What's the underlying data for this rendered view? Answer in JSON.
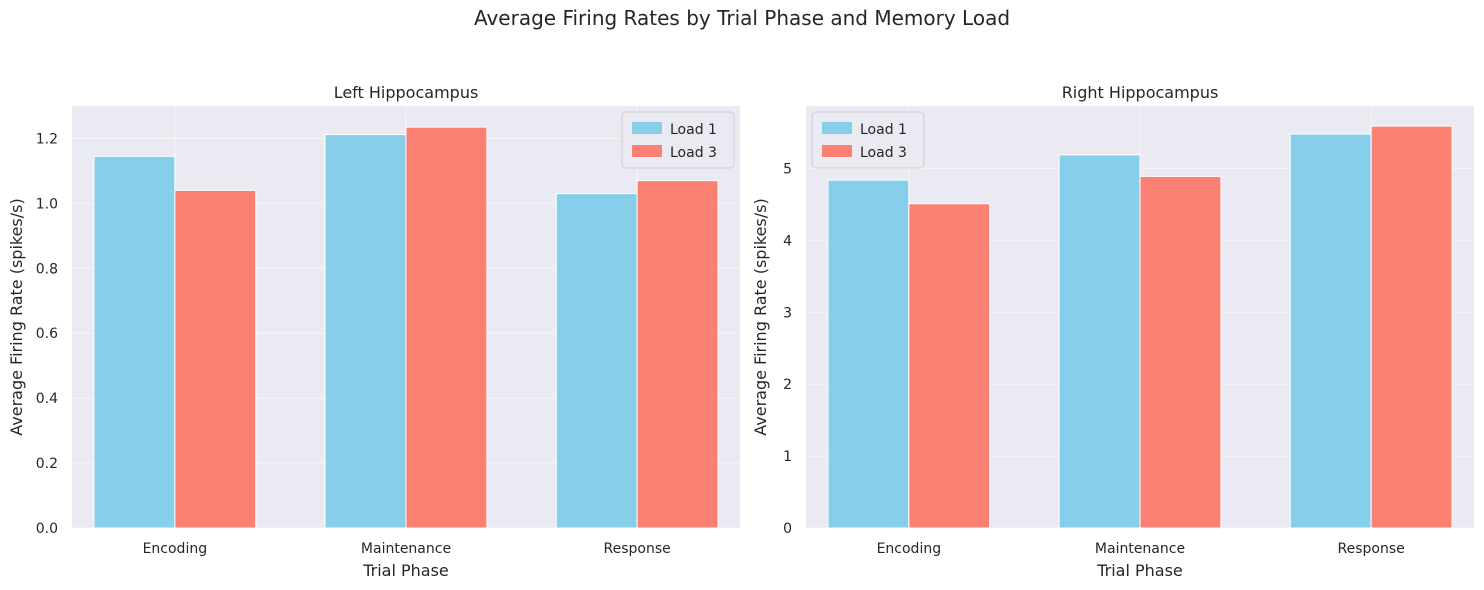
{
  "figure": {
    "title": "Average Firing Rates by Trial Phase and Memory Load",
    "colors": {
      "background": "#eaeaf2",
      "grid": "#ffffff"
    }
  },
  "chart_data": [
    {
      "type": "bar",
      "title": "Left Hippocampus",
      "xlabel": "Trial Phase",
      "ylabel": "Average Firing Rate (spikes/s)",
      "categories": [
        "Encoding",
        "Maintenance",
        "Response"
      ],
      "series": [
        {
          "name": "Load 1",
          "color": "#87ceeb",
          "values": [
            1.145,
            1.212,
            1.03
          ]
        },
        {
          "name": "Load 3",
          "color": "#fa8072",
          "values": [
            1.04,
            1.235,
            1.07
          ]
        }
      ],
      "ylim": [
        0,
        1.3
      ],
      "yticks": [
        0.0,
        0.2,
        0.4,
        0.6,
        0.8,
        1.0,
        1.2
      ],
      "ytick_labels": [
        "0.0",
        "0.2",
        "0.4",
        "0.6",
        "0.8",
        "1.0",
        "1.2"
      ],
      "legend": "upper right",
      "grid": true
    },
    {
      "type": "bar",
      "title": "Right Hippocampus",
      "xlabel": "Trial Phase",
      "ylabel": "Average Firing Rate (spikes/s)",
      "categories": [
        "Encoding",
        "Maintenance",
        "Response"
      ],
      "series": [
        {
          "name": "Load 1",
          "color": "#87ceeb",
          "values": [
            4.84,
            5.19,
            5.48
          ]
        },
        {
          "name": "Load 3",
          "color": "#fa8072",
          "values": [
            4.51,
            4.89,
            5.59
          ]
        }
      ],
      "ylim": [
        0,
        5.87
      ],
      "yticks": [
        0,
        1,
        2,
        3,
        4,
        5
      ],
      "ytick_labels": [
        "0",
        "1",
        "2",
        "3",
        "4",
        "5"
      ],
      "legend": "upper left",
      "grid": true
    }
  ]
}
